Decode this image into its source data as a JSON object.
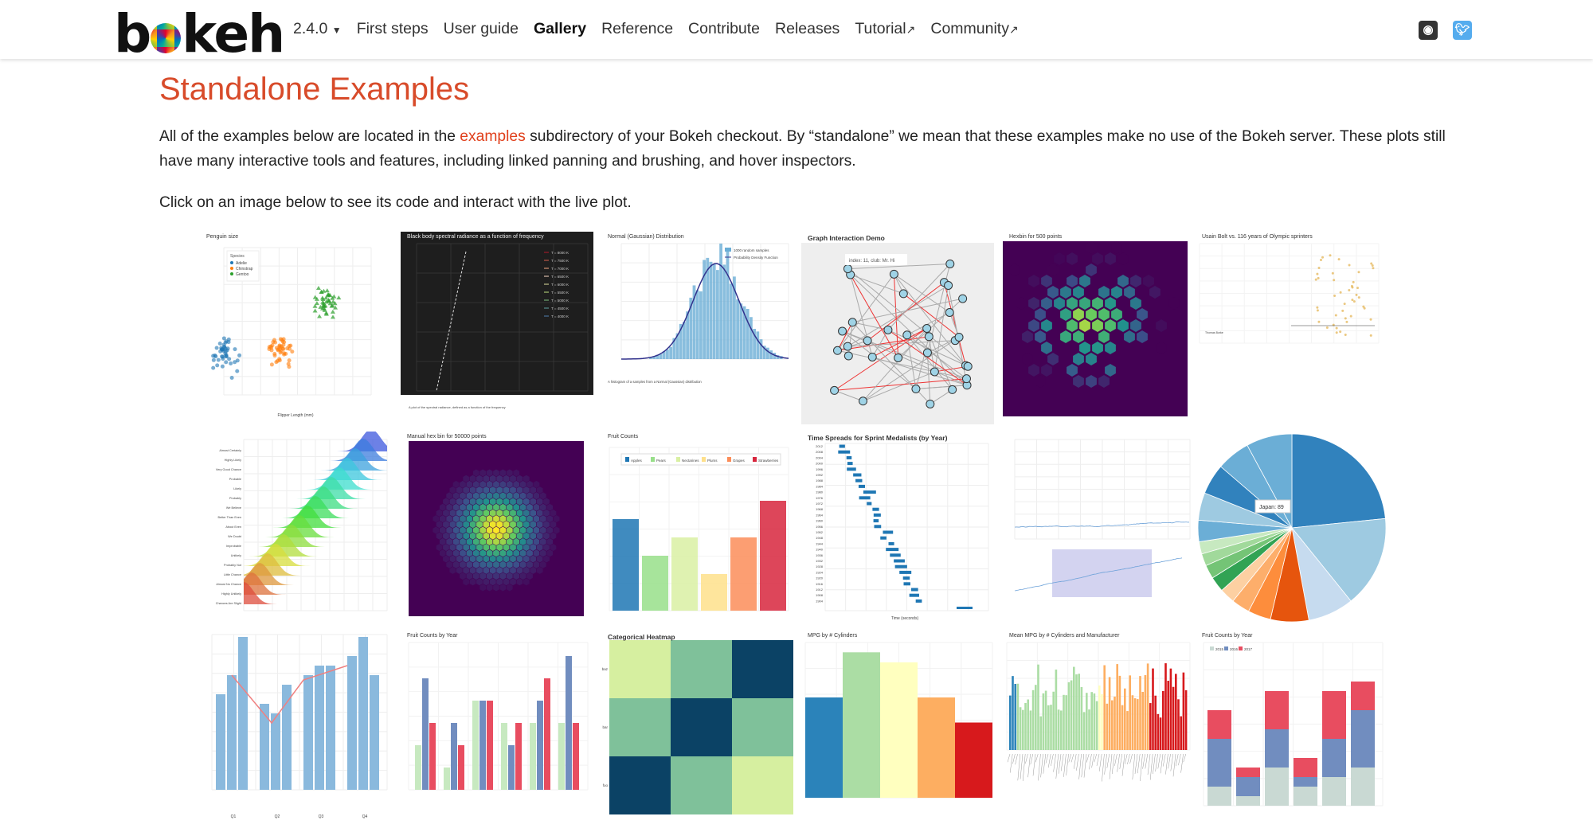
{
  "nav": {
    "logo": "bokeh",
    "version": "2.4.0",
    "items": [
      "First steps",
      "User guide",
      "Gallery",
      "Reference",
      "Contribute",
      "Releases",
      "Tutorial",
      "Community"
    ],
    "active": "Gallery",
    "external": [
      "Tutorial",
      "Community"
    ],
    "social": [
      {
        "icon": "github-icon",
        "color": "#333333"
      },
      {
        "icon": "twitter-icon",
        "color": "#55acee"
      }
    ]
  },
  "page": {
    "title": "Standalone Examples",
    "intro_before": "All of the examples below are located in the ",
    "intro_link": "examples",
    "intro_after": " subdirectory of your Bokeh checkout. By “standalone” we mean that these examples make no use of the Bokeh server. These plots still have many interactive tools and features, including linked panning and brushing, and hover inspectors.",
    "click_text": "Click on an image below to see its code and interact with the live plot."
  },
  "colors": {
    "accent": "#d84b2a",
    "link": "#e0401c"
  },
  "gallery": [
    {
      "kind": "scatter",
      "title": "Penguin size",
      "legend": [
        "Species",
        "Adelie",
        "Chinstrap",
        "Gentoo"
      ],
      "xlabel": "Flipper Length (mm)"
    },
    {
      "kind": "blackbody",
      "title": "Black body spectral radiance as a function of frequency"
    },
    {
      "kind": "histogram",
      "title": "Normal (Gaussian) Distribution",
      "legend": [
        "1000 random samples",
        "Probability Density Function"
      ]
    },
    {
      "kind": "graph",
      "title": "Graph Interaction Demo",
      "tooltip": "index: 11, club: Mr. Hi"
    },
    {
      "kind": "hexbin",
      "title": "Hexbin for 500 points"
    },
    {
      "kind": "bolt",
      "title": "Usain Bolt vs. 116 years of Olympic sprinters"
    },
    {
      "kind": "ridge",
      "title": ""
    },
    {
      "kind": "hexdense",
      "title": "Manual hex bin for 50000 points"
    },
    {
      "kind": "fruitbars",
      "title": "Fruit Counts",
      "legend": [
        "Apples",
        "Pears",
        "Nectarines",
        "Plums",
        "Grapes",
        "Strawberries"
      ]
    },
    {
      "kind": "spreads",
      "title": "Time Spreads for Sprint Medalists (by Year)"
    },
    {
      "kind": "rangetool",
      "title": ""
    },
    {
      "kind": "pie",
      "title": "",
      "tooltip": "Japan: 89"
    },
    {
      "kind": "quarters",
      "title": ""
    },
    {
      "kind": "grouped",
      "title": "Fruit Counts by Year"
    },
    {
      "kind": "heatmap",
      "title": "Categorical Heatmap"
    },
    {
      "kind": "mpg",
      "title": "MPG by # Cylinders"
    },
    {
      "kind": "mpgmanu",
      "title": "Mean MPG by # Cylinders and Manufacturer"
    },
    {
      "kind": "stacked",
      "title": "Fruit Counts by Year",
      "legend": [
        "2015",
        "2016",
        "2017"
      ]
    }
  ]
}
